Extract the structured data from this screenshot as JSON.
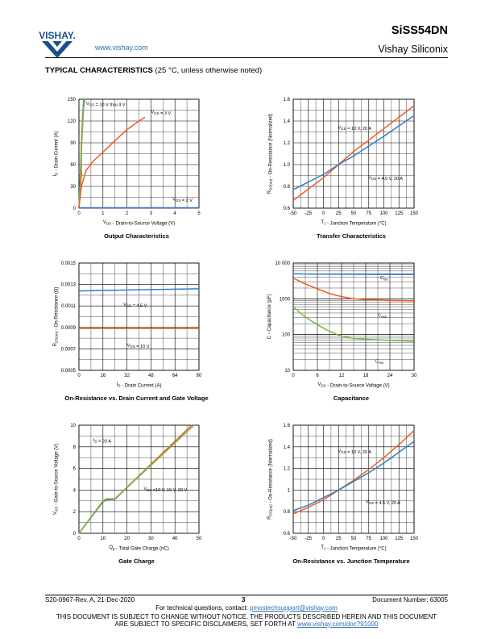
{
  "header": {
    "logo_text": "VISHAY.",
    "website": "www.vishay.com",
    "part_number": "SiSS54DN",
    "company": "Vishay Siliconix"
  },
  "section": {
    "title": "TYPICAL CHARACTERISTICS",
    "subtitle": "(25 °C, unless otherwise noted)"
  },
  "charts": [
    {
      "caption": "Output Characteristics",
      "xlabel": "V_DS - Drain-to-Source Voltage (V)",
      "ylabel": "I_D - Drain Current (A)",
      "annotations": [
        "V_GS = 10 V thru 4 V",
        "V_GS = 3 V",
        "V_GS = 2 V"
      ]
    },
    {
      "caption": "Transfer Characteristics",
      "xlabel": "T_J - Junction Temperature (°C)",
      "ylabel": "R_DS(on) - On-Resistance (Normalized)",
      "annotations": [
        "V_GS = 10 V, 20 A",
        "V_GS = 4.5 V, 20 A"
      ]
    },
    {
      "caption": "On-Resistance vs. Drain Current and Gate Voltage",
      "xlabel": "I_D - Drain Current (A)",
      "ylabel": "R_DS(on) - On-Resistance (Ω)",
      "annotations": [
        "V_GS = 4.5 V",
        "V_GS = 10 V"
      ]
    },
    {
      "caption": "Capacitance",
      "xlabel": "V_DS - Drain-to-Source Voltage (V)",
      "ylabel": "C - Capacitance (pF)",
      "annotations": [
        "C_iss",
        "C_oss",
        "C_rss"
      ]
    },
    {
      "caption": "Gate Charge",
      "xlabel": "Q_g - Total Gate Charge (nC)",
      "ylabel": "V_GS - Gate-to-Source Voltage (V)",
      "annotations": [
        "I_D = 20 A",
        "V_DS =10 V, 15 V, 20 V"
      ]
    },
    {
      "caption": "On-Resistance vs. Junction Temperature",
      "xlabel": "T_J - Junction Temperature (°C)",
      "ylabel": "R_DS(on) - On-Resistance (Normalized)",
      "annotations": [
        "V_GS = 10 V, 20 A",
        "V_GS = 4.5 V, 20 A"
      ]
    }
  ],
  "chart_data": [
    {
      "type": "line",
      "xlim": [
        0,
        5
      ],
      "ylim": [
        0,
        150
      ],
      "xticks": [
        "0",
        "1",
        "2",
        "3",
        "4",
        "5"
      ],
      "yticks": [
        "0",
        "30",
        "60",
        "90",
        "120",
        "150"
      ],
      "series": [
        {
          "color": "#2f7ec7",
          "x": [
            0,
            0.05,
            0.1,
            0.15,
            0.2
          ],
          "y": [
            0,
            40,
            85,
            125,
            150
          ]
        },
        {
          "color": "#f05a22",
          "x": [
            0,
            0.1,
            0.1,
            0.15,
            0.2,
            0.25
          ],
          "y": [
            0,
            45,
            90,
            120,
            140,
            150
          ]
        },
        {
          "color": "#7ab648",
          "x": [
            0,
            0.06,
            0.12,
            0.18,
            0.22
          ],
          "y": [
            0,
            45,
            90,
            130,
            150
          ]
        },
        {
          "color": "#f05a22",
          "x": [
            0,
            0.1,
            0.3,
            0.6,
            1,
            1.5,
            2,
            2.5,
            2.75
          ],
          "y": [
            0,
            30,
            52,
            65,
            77,
            93,
            108,
            120,
            125
          ]
        },
        {
          "color": "#2f7ec7",
          "x": [
            0,
            1,
            2,
            3,
            4,
            5
          ],
          "y": [
            0.5,
            0.5,
            0.5,
            0.5,
            0.5,
            0.5
          ]
        }
      ],
      "grid": true
    },
    {
      "type": "line",
      "xlim": [
        -50,
        150
      ],
      "ylim": [
        0.6,
        1.6
      ],
      "xticks": [
        "-50",
        "-25",
        "0",
        "25",
        "50",
        "75",
        "100",
        "125",
        "150"
      ],
      "yticks": [
        "0.6",
        "0.8",
        "1.0",
        "1.2",
        "1.4",
        "1.6"
      ],
      "series": [
        {
          "name": "V_GS = 10 V, 20 A",
          "color": "#f05a22",
          "x": [
            -50,
            0,
            25,
            50,
            100,
            150
          ],
          "y": [
            0.67,
            0.88,
            1.0,
            1.12,
            1.33,
            1.54
          ]
        },
        {
          "name": "V_GS = 4.5 V, 20 A",
          "color": "#2f7ec7",
          "x": [
            -50,
            0,
            25,
            50,
            100,
            150
          ],
          "y": [
            0.77,
            0.91,
            1.0,
            1.08,
            1.26,
            1.45
          ]
        }
      ],
      "grid": true
    },
    {
      "type": "line",
      "xlim": [
        0,
        80
      ],
      "ylim": [
        0.0005,
        0.0015
      ],
      "xticks": [
        "0",
        "16",
        "32",
        "48",
        "64",
        "80"
      ],
      "yticks": [
        "0.0005",
        "0.0007",
        "0.0009",
        "0.0011",
        "0.0013",
        "0.0015"
      ],
      "series": [
        {
          "name": "V_GS = 4.5 V",
          "color": "#2f7ec7",
          "x": [
            0,
            80
          ],
          "y": [
            0.00124,
            0.00126
          ]
        },
        {
          "name": "V_GS = 10 V",
          "color": "#f05a22",
          "x": [
            0,
            80
          ],
          "y": [
            0.00089,
            0.00089
          ]
        }
      ],
      "grid": true
    },
    {
      "type": "line",
      "log_y": true,
      "xlim": [
        0,
        30
      ],
      "ylim": [
        10,
        10000
      ],
      "xticks": [
        "0",
        "6",
        "12",
        "18",
        "24",
        "30"
      ],
      "yticks": [
        "10",
        "100",
        "1000",
        "10 000"
      ],
      "series": [
        {
          "name": "C_iss",
          "color": "#2f7ec7",
          "x": [
            0,
            6,
            12,
            18,
            24,
            30
          ],
          "y": [
            5000,
            4900,
            4850,
            4820,
            4800,
            4800
          ]
        },
        {
          "name": "C_oss",
          "color": "#f05a22",
          "x": [
            0,
            3,
            6,
            9,
            12,
            15,
            18,
            24,
            30
          ],
          "y": [
            3800,
            2600,
            1900,
            1400,
            1150,
            1000,
            950,
            900,
            880
          ]
        },
        {
          "name": "C_rss",
          "color": "#7ab648",
          "x": [
            0,
            2,
            4,
            6,
            8,
            10,
            12,
            15,
            20,
            25,
            30
          ],
          "y": [
            600,
            380,
            260,
            190,
            140,
            110,
            90,
            78,
            72,
            68,
            65
          ]
        }
      ],
      "grid": true
    },
    {
      "type": "line",
      "xlim": [
        0,
        50
      ],
      "ylim": [
        0,
        10
      ],
      "xticks": [
        "0",
        "10",
        "20",
        "30",
        "40",
        "50"
      ],
      "yticks": [
        "0",
        "2",
        "4",
        "6",
        "8",
        "10"
      ],
      "series": [
        {
          "color": "#2f7ec7",
          "x": [
            0,
            10,
            11.5,
            15,
            47
          ],
          "y": [
            0,
            2.9,
            3.1,
            3.15,
            10
          ]
        },
        {
          "color": "#f05a22",
          "x": [
            0,
            10,
            11.5,
            15,
            47
          ],
          "y": [
            0,
            2.95,
            3.15,
            3.2,
            10
          ]
        },
        {
          "color": "#7ab648",
          "x": [
            0,
            10,
            11.5,
            15,
            48
          ],
          "y": [
            0,
            3.0,
            3.2,
            3.2,
            10
          ]
        }
      ],
      "grid": true
    },
    {
      "type": "line",
      "xlim": [
        -50,
        150
      ],
      "ylim": [
        0.6,
        1.6
      ],
      "xticks": [
        "-50",
        "-25",
        "0",
        "25",
        "50",
        "75",
        "100",
        "125",
        "150"
      ],
      "yticks": [
        "0.6",
        "0.8",
        "1",
        "1.2",
        "1.4",
        "1.6"
      ],
      "series": [
        {
          "name": "V_GS = 10 V, 20 A",
          "color": "#f05a22",
          "x": [
            -50,
            -25,
            0,
            25,
            50,
            75,
            100,
            125,
            150
          ],
          "y": [
            0.78,
            0.84,
            0.91,
            1.0,
            1.09,
            1.19,
            1.3,
            1.42,
            1.55
          ]
        },
        {
          "name": "V_GS = 4.5 V, 20 A",
          "color": "#2f7ec7",
          "x": [
            -50,
            -25,
            0,
            25,
            50,
            75,
            100,
            125,
            150
          ],
          "y": [
            0.81,
            0.86,
            0.93,
            1.0,
            1.08,
            1.16,
            1.25,
            1.35,
            1.45
          ]
        }
      ],
      "grid": true
    }
  ],
  "footer": {
    "left": "S20-0967-Rev. A, 21-Dec-2020",
    "page": "3",
    "right": "Document Number: 63005",
    "contact_prefix": "For technical questions, contact: ",
    "contact_email": "pmostechsupport@vishay.com",
    "disclaimer_line1": "THIS DOCUMENT IS SUBJECT TO CHANGE WITHOUT NOTICE. THE PRODUCTS DESCRIBED HEREIN AND THIS DOCUMENT",
    "disclaimer_line2_prefix": "ARE SUBJECT TO SPECIFIC DISCLAIMERS, SET FORTH AT ",
    "disclaimer_link": "www.vishay.com/doc?91000"
  }
}
